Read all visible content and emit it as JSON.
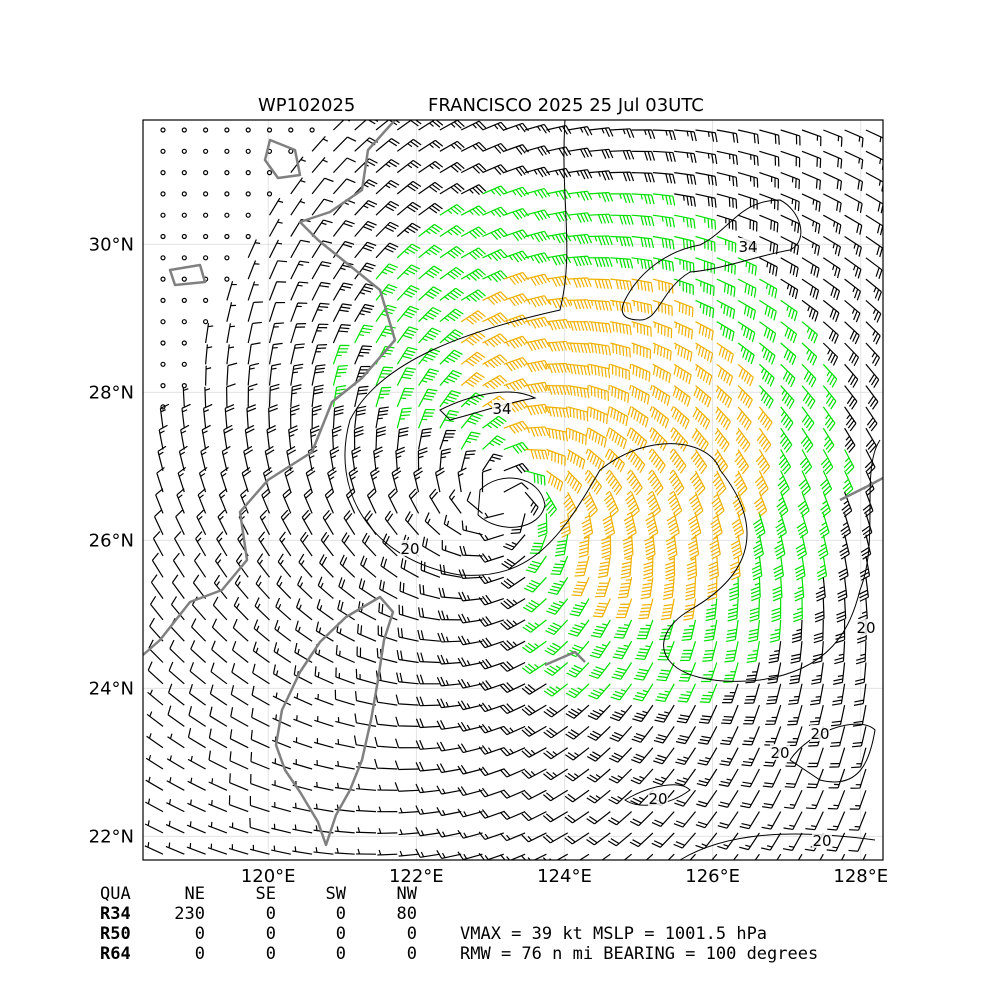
{
  "title": {
    "storm_id": "WP102025",
    "storm_time": "FRANCISCO 2025 25 Jul 03UTC"
  },
  "map": {
    "xlim": [
      118.31,
      128.3
    ],
    "ylim": [
      21.68,
      31.68
    ],
    "xticks": [
      {
        "value": 120,
        "label": "120°E"
      },
      {
        "value": 122,
        "label": "122°E"
      },
      {
        "value": 124,
        "label": "124°E"
      },
      {
        "value": 126,
        "label": "126°E"
      },
      {
        "value": 128,
        "label": "128°E"
      }
    ],
    "yticks": [
      {
        "value": 22,
        "label": "22°N"
      },
      {
        "value": 24,
        "label": "24°N"
      },
      {
        "value": 26,
        "label": "26°N"
      },
      {
        "value": 28,
        "label": "28°N"
      },
      {
        "value": 30,
        "label": "30°N"
      }
    ],
    "contour_labels": [
      "34",
      "34",
      "20",
      "20",
      "20",
      "20",
      "20",
      "20"
    ]
  },
  "table": {
    "header": [
      "QUA",
      "NE",
      "SE",
      "SW",
      "NW"
    ],
    "rows": [
      [
        "R34",
        "230",
        "0",
        "0",
        "80"
      ],
      [
        "R50",
        "0",
        "0",
        "0",
        "0"
      ],
      [
        "R64",
        "0",
        "0",
        "0",
        "0"
      ]
    ]
  },
  "summary": [
    "VMAX =  39 kt MSLP = 1001.5 hPa",
    "RMW =  76 n mi BEARING = 100 degrees"
  ]
}
